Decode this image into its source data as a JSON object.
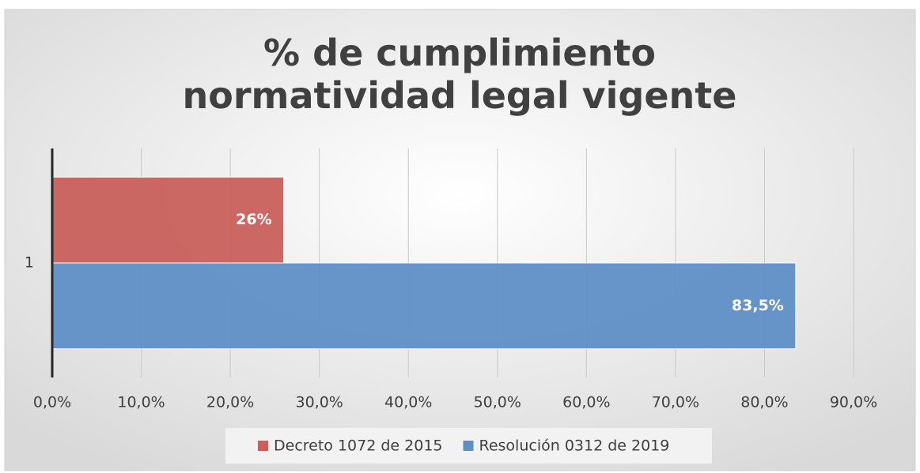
{
  "chart_data": {
    "type": "hbar",
    "title": "% de cumplimiento normatividad legal vigente",
    "categories": [
      "1"
    ],
    "series": [
      {
        "name": "Decreto 1072 de 2015",
        "color": "#c8605b",
        "values": [
          26
        ],
        "value_labels": [
          "26%"
        ]
      },
      {
        "name": "Resolución 0312 de 2019",
        "color": "#5f8ec6",
        "values": [
          83.5
        ],
        "value_labels": [
          "83,5%"
        ]
      }
    ],
    "xlim": [
      0,
      90
    ],
    "xticks": [
      {
        "value": 0,
        "label": "0,0%"
      },
      {
        "value": 10,
        "label": "10,0%"
      },
      {
        "value": 20,
        "label": "20,0%"
      },
      {
        "value": 30,
        "label": "30,0%"
      },
      {
        "value": 40,
        "label": "40,0%"
      },
      {
        "value": 50,
        "label": "50,0%"
      },
      {
        "value": 60,
        "label": "60,0%"
      },
      {
        "value": 70,
        "label": "70,0%"
      },
      {
        "value": 80,
        "label": "80,0%"
      },
      {
        "value": 90,
        "label": "90,0%"
      }
    ],
    "grid": true,
    "legend": "bottom"
  }
}
